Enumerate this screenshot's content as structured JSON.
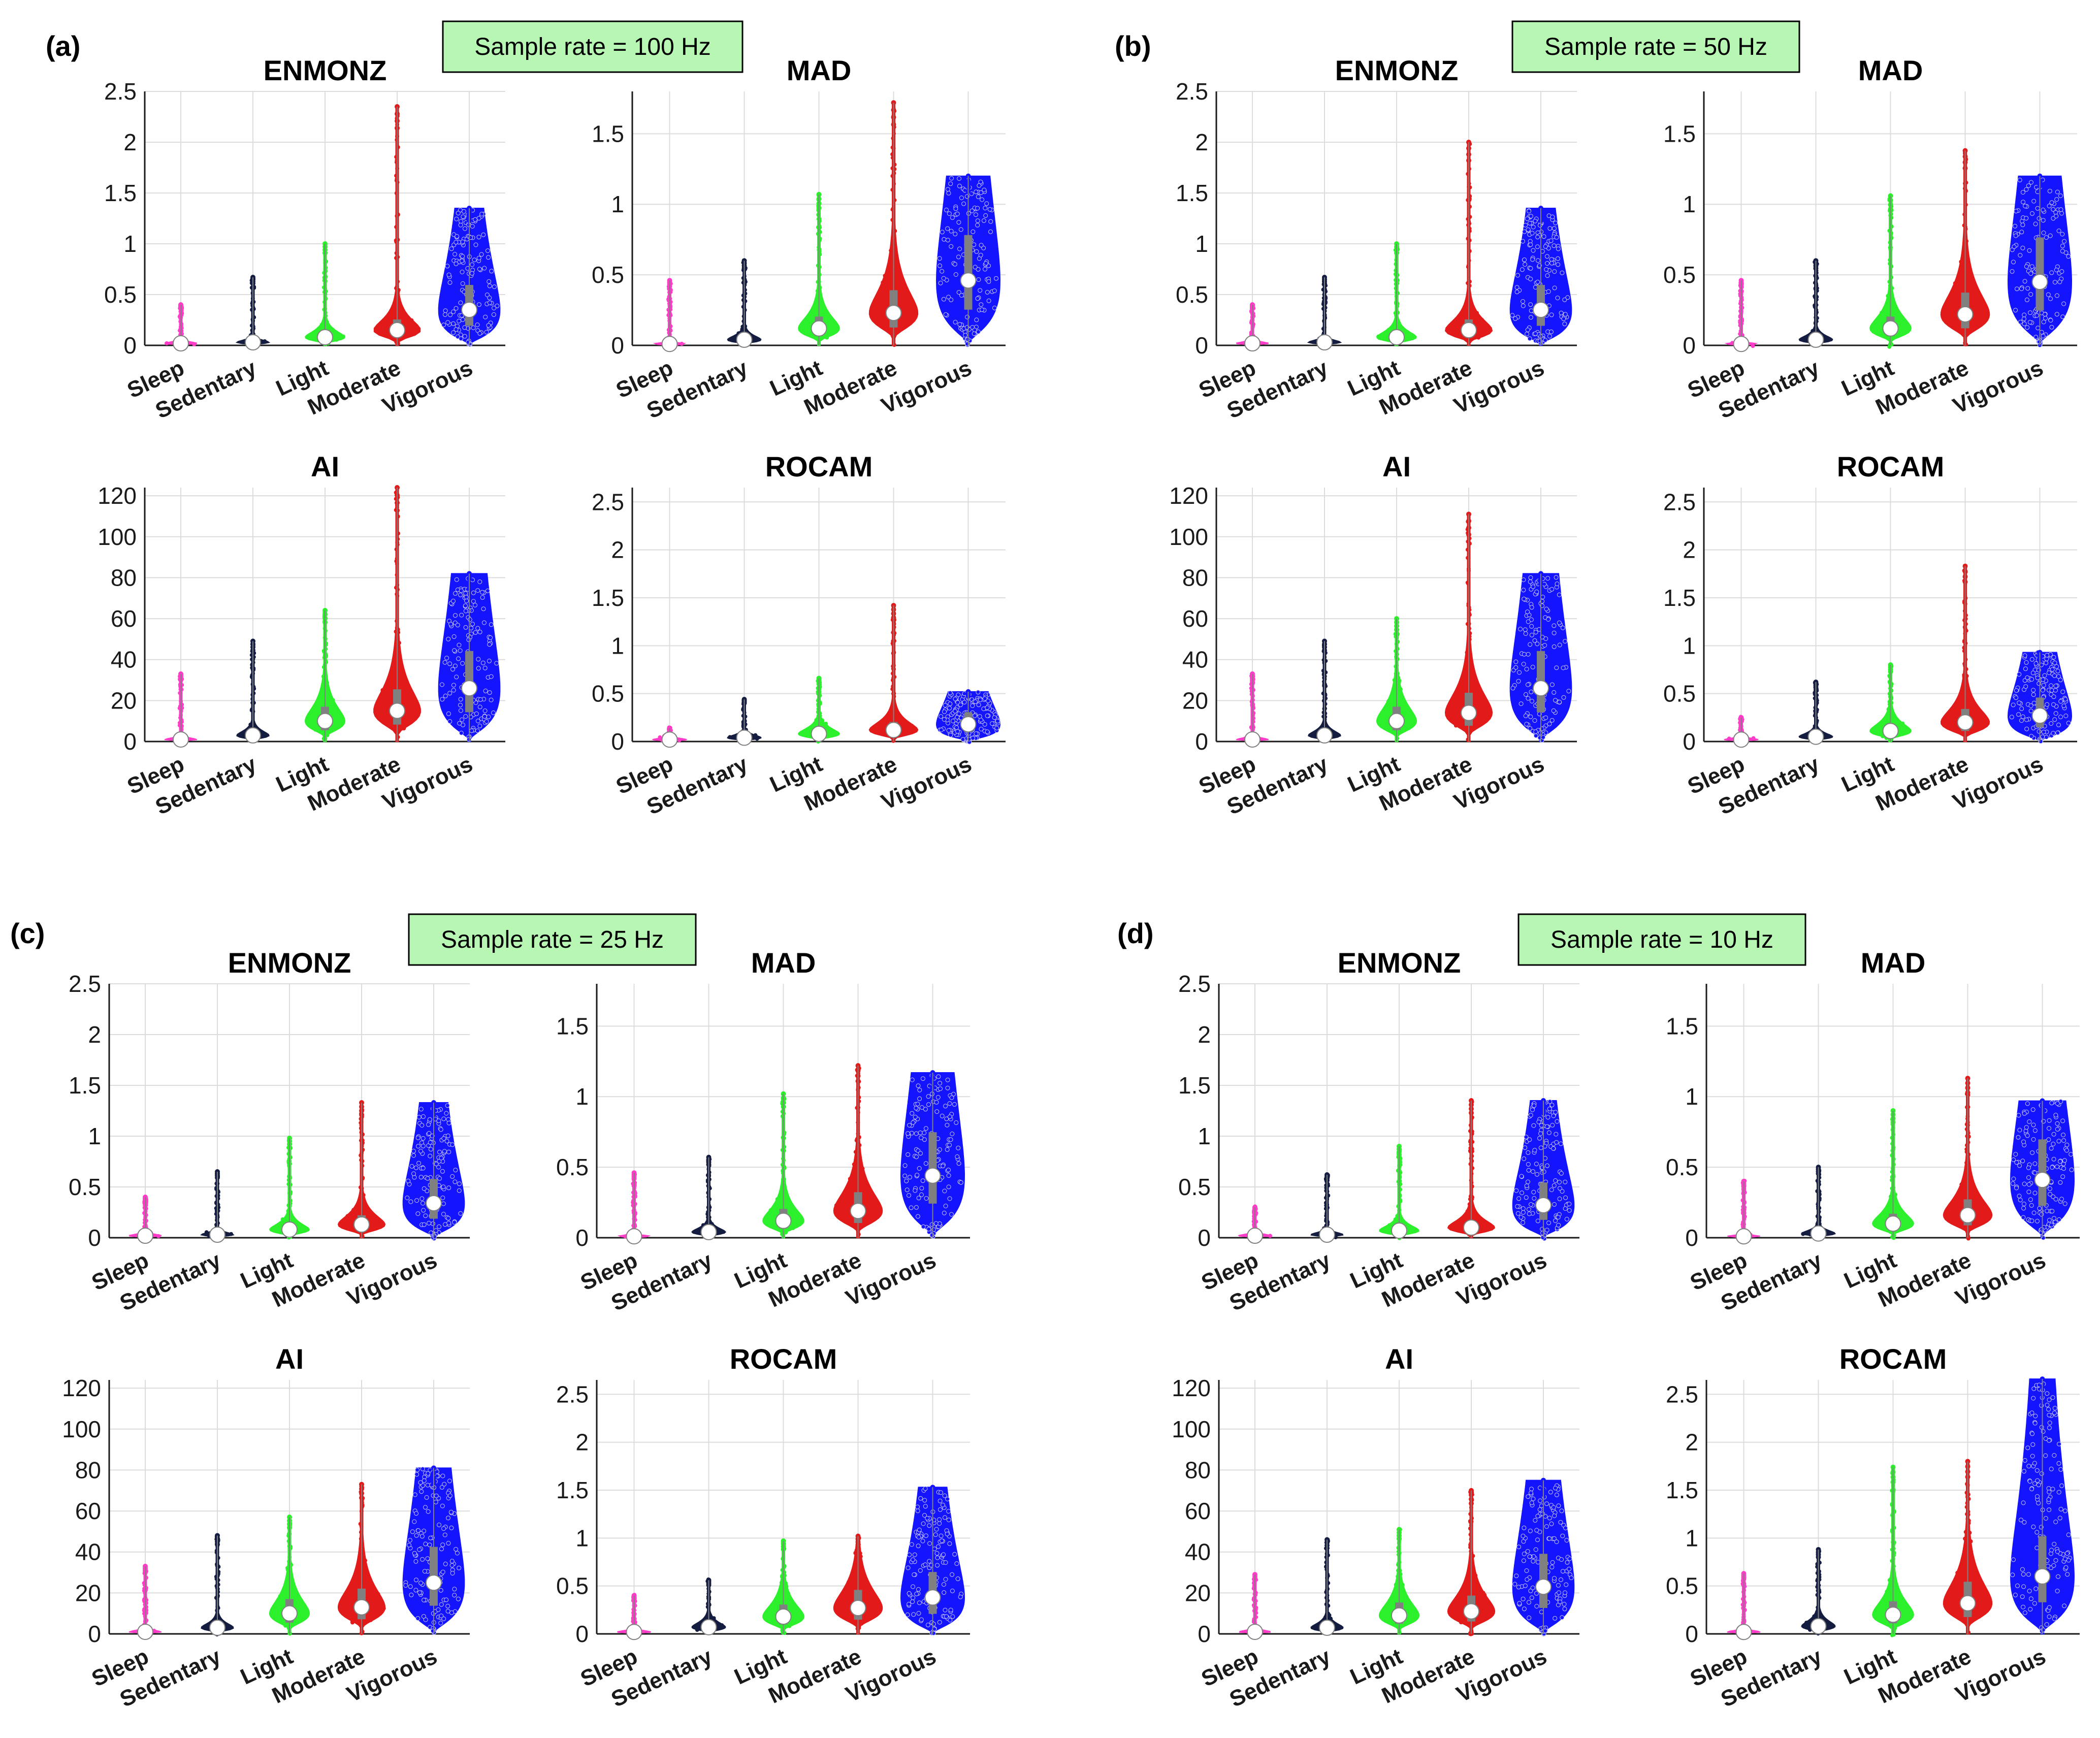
{
  "categories": [
    "Sleep",
    "Sedentary",
    "Light",
    "Moderate",
    "Vigorous"
  ],
  "colors": {
    "Sleep": "#ff3cc8",
    "Sedentary": "#141d40",
    "Light": "#2cf02c",
    "Moderate": "#e21a1a",
    "Vigorous": "#1414ff",
    "iqr": "#808080",
    "median_fill": "#ffffff",
    "rate_box": "#b7f7b3"
  },
  "chart_data": [
    {
      "panel": "(a)",
      "sample_rate_label": "Sample rate = 100 Hz",
      "type": "violin",
      "charts": [
        {
          "title": "ENMONZ",
          "ylim": [
            0,
            2.5
          ],
          "yticks": [
            "0",
            "0.5",
            "1",
            "1.5",
            "2",
            "2.5"
          ],
          "yticks_num": [
            0,
            0.5,
            1,
            1.5,
            2,
            2.5
          ],
          "medians": [
            0.02,
            0.03,
            0.08,
            0.15,
            0.35
          ],
          "maxima": [
            0.4,
            0.67,
            1.0,
            2.35,
            1.35
          ]
        },
        {
          "title": "MAD",
          "ylim": [
            0,
            1.8
          ],
          "yticks": [
            "0",
            "0.5",
            "1",
            "1.5"
          ],
          "yticks_num": [
            0,
            0.5,
            1,
            1.5
          ],
          "medians": [
            0.01,
            0.04,
            0.12,
            0.23,
            0.46
          ],
          "maxima": [
            0.46,
            0.6,
            1.07,
            1.72,
            1.2
          ]
        },
        {
          "title": "AI",
          "ylim": [
            0,
            124
          ],
          "yticks": [
            "0",
            "20",
            "40",
            "60",
            "80",
            "100",
            "120"
          ],
          "yticks_num": [
            0,
            20,
            40,
            60,
            80,
            100,
            120
          ],
          "medians": [
            1,
            3,
            10,
            15,
            26
          ],
          "maxima": [
            33,
            49,
            64,
            124,
            82
          ]
        },
        {
          "title": "ROCAM",
          "ylim": [
            0,
            2.65
          ],
          "yticks": [
            "0",
            "0.5",
            "1",
            "1.5",
            "2",
            "2.5"
          ],
          "yticks_num": [
            0,
            0.5,
            1,
            1.5,
            2,
            2.5
          ],
          "medians": [
            0.02,
            0.04,
            0.08,
            0.12,
            0.18
          ],
          "maxima": [
            0.14,
            0.44,
            0.66,
            1.42,
            0.52
          ]
        }
      ]
    },
    {
      "panel": "(b)",
      "sample_rate_label": "Sample rate = 50 Hz",
      "type": "violin",
      "charts": [
        {
          "title": "ENMONZ",
          "ylim": [
            0,
            2.5
          ],
          "yticks": [
            "0",
            "0.5",
            "1",
            "1.5",
            "2",
            "2.5"
          ],
          "yticks_num": [
            0,
            0.5,
            1,
            1.5,
            2,
            2.5
          ],
          "medians": [
            0.02,
            0.03,
            0.08,
            0.15,
            0.35
          ],
          "maxima": [
            0.4,
            0.67,
            1.0,
            2.0,
            1.35
          ]
        },
        {
          "title": "MAD",
          "ylim": [
            0,
            1.8
          ],
          "yticks": [
            "0",
            "0.5",
            "1",
            "1.5"
          ],
          "yticks_num": [
            0,
            0.5,
            1,
            1.5
          ],
          "medians": [
            0.01,
            0.04,
            0.12,
            0.22,
            0.45
          ],
          "maxima": [
            0.46,
            0.6,
            1.06,
            1.38,
            1.2
          ]
        },
        {
          "title": "AI",
          "ylim": [
            0,
            124
          ],
          "yticks": [
            "0",
            "20",
            "40",
            "60",
            "80",
            "100",
            "120"
          ],
          "yticks_num": [
            0,
            20,
            40,
            60,
            80,
            100,
            120
          ],
          "medians": [
            1,
            3,
            10,
            14,
            26
          ],
          "maxima": [
            33,
            49,
            60,
            111,
            82
          ]
        },
        {
          "title": "ROCAM",
          "ylim": [
            0,
            2.65
          ],
          "yticks": [
            "0",
            "0.5",
            "1",
            "1.5",
            "2",
            "2.5"
          ],
          "yticks_num": [
            0,
            0.5,
            1,
            1.5,
            2,
            2.5
          ],
          "medians": [
            0.02,
            0.05,
            0.11,
            0.2,
            0.27
          ],
          "maxima": [
            0.25,
            0.62,
            0.8,
            1.83,
            0.93
          ]
        }
      ]
    },
    {
      "panel": "(c)",
      "sample_rate_label": "Sample rate = 25 Hz",
      "type": "violin",
      "charts": [
        {
          "title": "ENMONZ",
          "ylim": [
            0,
            2.5
          ],
          "yticks": [
            "0",
            "0.5",
            "1",
            "1.5",
            "2",
            "2.5"
          ],
          "yticks_num": [
            0,
            0.5,
            1,
            1.5,
            2,
            2.5
          ],
          "medians": [
            0.02,
            0.03,
            0.08,
            0.13,
            0.34
          ],
          "maxima": [
            0.4,
            0.65,
            0.98,
            1.33,
            1.33
          ]
        },
        {
          "title": "MAD",
          "ylim": [
            0,
            1.8
          ],
          "yticks": [
            "0",
            "0.5",
            "1",
            "1.5"
          ],
          "yticks_num": [
            0,
            0.5,
            1,
            1.5
          ],
          "medians": [
            0.01,
            0.04,
            0.12,
            0.19,
            0.44
          ],
          "maxima": [
            0.46,
            0.57,
            1.02,
            1.22,
            1.17
          ]
        },
        {
          "title": "AI",
          "ylim": [
            0,
            124
          ],
          "yticks": [
            "0",
            "20",
            "40",
            "60",
            "80",
            "100",
            "120"
          ],
          "yticks_num": [
            0,
            20,
            40,
            60,
            80,
            100,
            120
          ],
          "medians": [
            1,
            3,
            10,
            13,
            25
          ],
          "maxima": [
            33,
            48,
            57,
            73,
            81
          ]
        },
        {
          "title": "ROCAM",
          "ylim": [
            0,
            2.65
          ],
          "yticks": [
            "0",
            "0.5",
            "1",
            "1.5",
            "2",
            "2.5"
          ],
          "yticks_num": [
            0,
            0.5,
            1,
            1.5,
            2,
            2.5
          ],
          "medians": [
            0.02,
            0.07,
            0.18,
            0.27,
            0.38
          ],
          "maxima": [
            0.4,
            0.56,
            0.97,
            1.02,
            1.53
          ]
        }
      ]
    },
    {
      "panel": "(d)",
      "sample_rate_label": "Sample rate = 10 Hz",
      "type": "violin",
      "charts": [
        {
          "title": "ENMONZ",
          "ylim": [
            0,
            2.5
          ],
          "yticks": [
            "0",
            "0.5",
            "1",
            "1.5",
            "2",
            "2.5"
          ],
          "yticks_num": [
            0,
            0.5,
            1,
            1.5,
            2,
            2.5
          ],
          "medians": [
            0.02,
            0.03,
            0.07,
            0.1,
            0.32
          ],
          "maxima": [
            0.3,
            0.62,
            0.9,
            1.35,
            1.35
          ]
        },
        {
          "title": "MAD",
          "ylim": [
            0,
            1.8
          ],
          "yticks": [
            "0",
            "0.5",
            "1",
            "1.5"
          ],
          "yticks_num": [
            0,
            0.5,
            1,
            1.5
          ],
          "medians": [
            0.01,
            0.03,
            0.1,
            0.16,
            0.41
          ],
          "maxima": [
            0.4,
            0.5,
            0.9,
            1.13,
            0.97
          ]
        },
        {
          "title": "AI",
          "ylim": [
            0,
            124
          ],
          "yticks": [
            "0",
            "20",
            "40",
            "60",
            "80",
            "100",
            "120"
          ],
          "yticks_num": [
            0,
            20,
            40,
            60,
            80,
            100,
            120
          ],
          "medians": [
            1,
            3,
            9,
            11,
            23
          ],
          "maxima": [
            29,
            46,
            51,
            70,
            75
          ]
        },
        {
          "title": "ROCAM",
          "ylim": [
            0,
            2.65
          ],
          "yticks": [
            "0",
            "0.5",
            "1",
            "1.5",
            "2",
            "2.5"
          ],
          "yticks_num": [
            0,
            0.5,
            1,
            1.5,
            2,
            2.5
          ],
          "medians": [
            0.02,
            0.08,
            0.2,
            0.32,
            0.6
          ],
          "maxima": [
            0.63,
            0.88,
            1.74,
            1.8,
            2.66
          ]
        }
      ]
    }
  ]
}
